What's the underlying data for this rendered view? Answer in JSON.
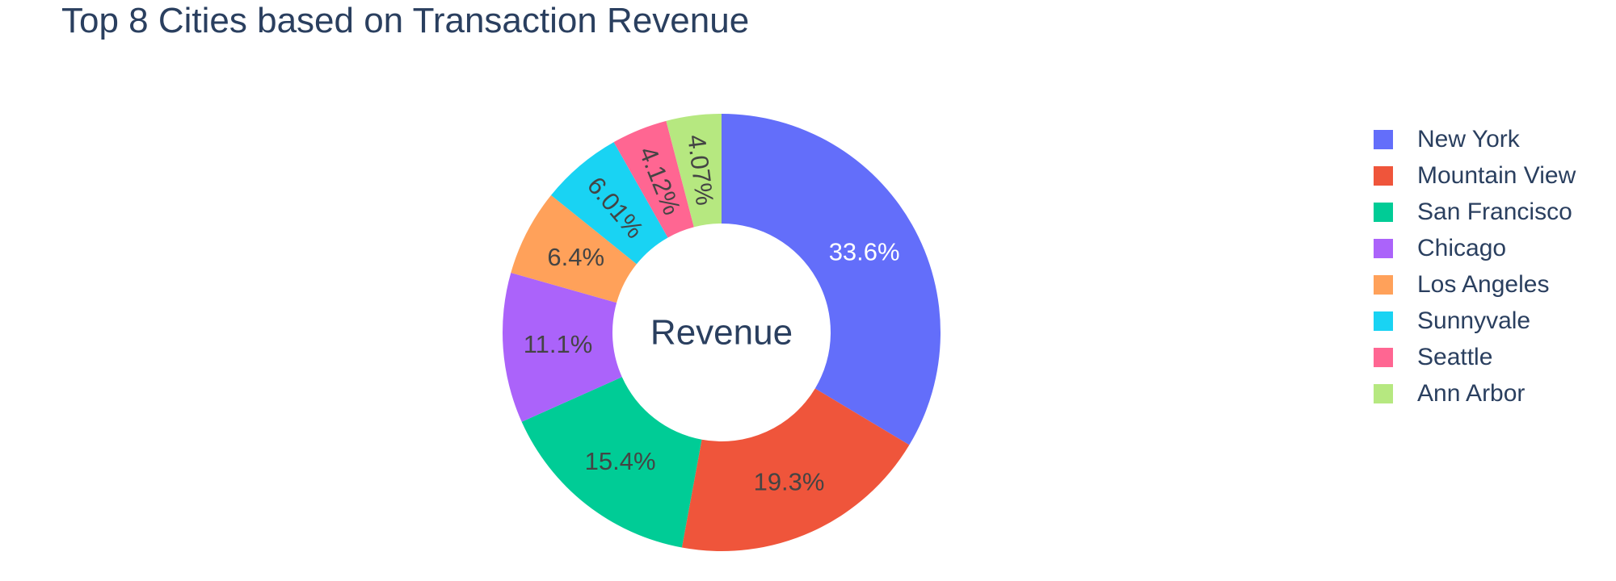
{
  "chart_data": {
    "type": "pie",
    "hole": true,
    "title": "Top 8 Cities based on Transaction Revenue",
    "center_text": "Revenue",
    "categories": [
      "New York",
      "Mountain View",
      "San Francisco",
      "Chicago",
      "Los Angeles",
      "Sunnyvale",
      "Seattle",
      "Ann Arbor"
    ],
    "values": [
      33.6,
      19.3,
      15.4,
      11.1,
      6.4,
      6.01,
      4.12,
      4.07
    ],
    "labels": [
      "33.6%",
      "19.3%",
      "15.4%",
      "11.1%",
      "6.4%",
      "6.01%",
      "4.12%",
      "4.07%"
    ],
    "colors": [
      "#636efa",
      "#EF553B",
      "#00cc96",
      "#ab63fa",
      "#FFA15A",
      "#19d3f3",
      "#FF6692",
      "#B6E880"
    ],
    "label_colors": [
      "#ffffff",
      "#444444",
      "#444444",
      "#444444",
      "#444444",
      "#444444",
      "#444444",
      "#444444"
    ],
    "legend_position": "right"
  }
}
